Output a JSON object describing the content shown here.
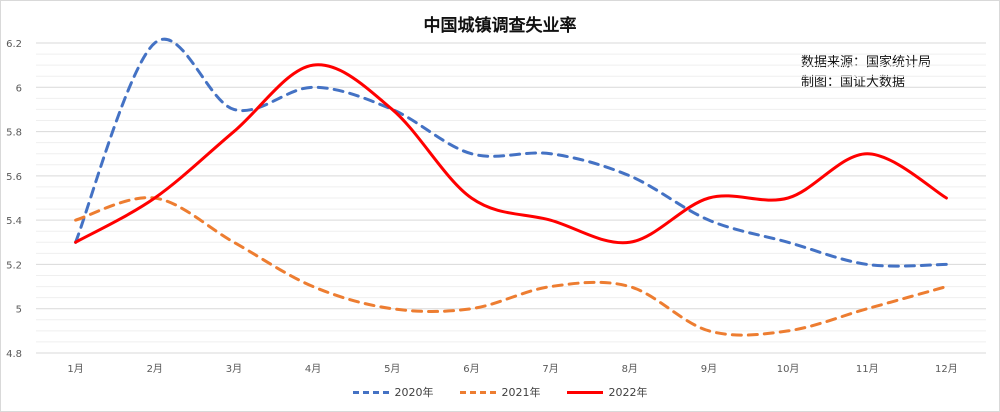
{
  "chart_data": {
    "type": "line",
    "title": "中国城镇调查失业率",
    "annotations": [
      "数据来源：国家统计局",
      "制图：国证大数据"
    ],
    "categories": [
      "1月",
      "2月",
      "3月",
      "4月",
      "5月",
      "6月",
      "7月",
      "8月",
      "9月",
      "10月",
      "11月",
      "12月"
    ],
    "ylim": [
      4.8,
      6.2
    ],
    "yticks": [
      4.8,
      5,
      5.2,
      5.4,
      5.6,
      5.8,
      6,
      6.2
    ],
    "grid": true,
    "legend": "bottom",
    "series": [
      {
        "name": "2020年",
        "color": "#4472C4",
        "style": "dashed",
        "values": [
          5.3,
          6.2,
          5.9,
          6.0,
          5.9,
          5.7,
          5.7,
          5.6,
          5.4,
          5.3,
          5.2,
          5.2
        ]
      },
      {
        "name": "2021年",
        "color": "#ED7D31",
        "style": "dashed",
        "values": [
          5.4,
          5.5,
          5.3,
          5.1,
          5.0,
          5.0,
          5.1,
          5.1,
          4.9,
          4.9,
          5.0,
          5.1
        ]
      },
      {
        "name": "2022年",
        "color": "#FF0000",
        "style": "solid",
        "values": [
          5.3,
          5.5,
          5.8,
          6.1,
          5.9,
          5.5,
          5.4,
          5.3,
          5.5,
          5.5,
          5.7,
          5.5
        ]
      }
    ]
  }
}
